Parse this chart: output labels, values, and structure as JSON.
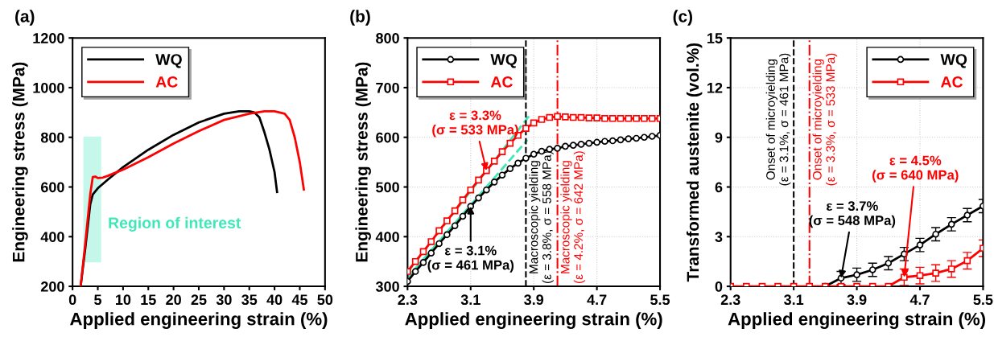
{
  "chart_data": [
    {
      "type": "line",
      "title": "(a)",
      "xlabel": "Applied engineering strain (%)",
      "ylabel": "Engineering stress (MPa)",
      "xlim": [
        0,
        50
      ],
      "xticks": [
        0,
        5,
        10,
        15,
        20,
        25,
        30,
        35,
        40,
        45,
        50
      ],
      "ylim": [
        200,
        1200
      ],
      "yticks": [
        200,
        400,
        600,
        800,
        1000,
        1200
      ],
      "grid": false,
      "legend": "top left",
      "marker": "none",
      "line_style": "solid",
      "bands": [
        {
          "axis": "x",
          "from": 2.3,
          "to": 5.5,
          "label": "Region of interest",
          "color": "#40e8b8"
        }
      ],
      "series": [
        {
          "name": "WQ",
          "color": "#000000",
          "x": [
            1.6,
            2.5,
            3.5,
            4.0,
            5.0,
            7,
            10,
            15,
            20,
            25,
            30,
            33,
            35,
            36,
            37,
            38,
            39,
            40,
            40.5
          ],
          "values": [
            200,
            350,
            530,
            570,
            595,
            630,
            680,
            750,
            810,
            860,
            895,
            905,
            905,
            900,
            880,
            820,
            750,
            660,
            580
          ]
        },
        {
          "name": "AC",
          "color": "#ff0000",
          "x": [
            1.6,
            2.5,
            3.5,
            4.0,
            4.5,
            5.0,
            6,
            7,
            10,
            15,
            20,
            25,
            30,
            35,
            38,
            40,
            42,
            43,
            44,
            45,
            45.8
          ],
          "values": [
            200,
            370,
            570,
            640,
            642,
            636,
            638,
            645,
            670,
            720,
            775,
            825,
            870,
            895,
            905,
            905,
            895,
            870,
            800,
            700,
            590
          ]
        }
      ]
    },
    {
      "type": "line",
      "title": "(b)",
      "xlabel": "Applied engineering strain (%)",
      "ylabel": "Engineering stress (MPa)",
      "xlim": [
        2.3,
        5.5
      ],
      "xticks": [
        2.3,
        3.1,
        3.9,
        4.7,
        5.5
      ],
      "ylim": [
        300,
        800
      ],
      "yticks": [
        300,
        400,
        500,
        600,
        700,
        800
      ],
      "grid": true,
      "legend": "top left",
      "line_style": "solid",
      "x": [
        2.3,
        2.4,
        2.5,
        2.6,
        2.7,
        2.8,
        2.9,
        3.0,
        3.1,
        3.2,
        3.3,
        3.4,
        3.5,
        3.6,
        3.7,
        3.8,
        3.9,
        4.0,
        4.1,
        4.2,
        4.3,
        4.4,
        4.5,
        4.6,
        4.7,
        4.8,
        4.9,
        5.0,
        5.1,
        5.2,
        5.3,
        5.4,
        5.5
      ],
      "series": [
        {
          "name": "WQ",
          "color": "#000000",
          "marker": "circle",
          "values": [
            310,
            330,
            348,
            367,
            386,
            404,
            422,
            441,
            461,
            478,
            494,
            510,
            524,
            537,
            548,
            558,
            566,
            572,
            576,
            578,
            582,
            584,
            586,
            588,
            590,
            592,
            593,
            595,
            597,
            598,
            600,
            602,
            604
          ]
        },
        {
          "name": "AC",
          "color": "#ff0000",
          "marker": "square",
          "values": [
            330,
            350,
            370,
            390,
            412,
            432,
            452,
            474,
            494,
            514,
            533,
            552,
            571,
            588,
            604,
            618,
            629,
            636,
            640,
            642,
            641,
            640,
            640,
            639,
            639,
            638,
            638,
            638,
            638,
            638,
            638,
            638,
            638
          ]
        },
        {
          "type": "line",
          "color": "#40e8b8",
          "marker": "none",
          "line_style": "dashed",
          "x": [
            2.3,
            3.86
          ],
          "values": [
            328,
            647
          ]
        },
        {
          "type": "line",
          "color": "#40e8b8",
          "marker": "none",
          "line_style": "dashed",
          "x": [
            2.3,
            3.82
          ],
          "values": [
            318,
            595
          ]
        }
      ],
      "ref_lines": [
        {
          "axis": "x",
          "value": 3.8,
          "label": "Macroscopic yielding\n(ε = 3.8%, σ = 558 MPa)",
          "color": "#000000",
          "line_style": "dashed"
        },
        {
          "axis": "x",
          "value": 4.2,
          "label": "Macroscopic yielding\n(ε = 4.2%, σ = 642 MPa)",
          "color": "#ff0000",
          "line_style": "dashdot"
        }
      ],
      "annotations": [
        {
          "text": "ε = 3.3%\n(σ = 533 MPa)",
          "x": 3.3,
          "y": 533
        },
        {
          "text": "ε = 3.1%\n(σ = 461 MPa)",
          "x": 3.1,
          "y": 461
        }
      ]
    },
    {
      "type": "line",
      "title": "(c)",
      "xlabel": "Applied engineering strain (%)",
      "ylabel": "Transformed austenite (vol.%)",
      "xlim": [
        2.3,
        5.5
      ],
      "xticks": [
        2.3,
        3.1,
        3.9,
        4.7,
        5.5
      ],
      "ylim": [
        0,
        15
      ],
      "yticks": [
        0,
        3,
        6,
        9,
        12,
        15
      ],
      "grid": true,
      "legend": "top right",
      "line_style": "solid",
      "x": [
        2.3,
        2.5,
        2.7,
        2.9,
        3.1,
        3.3,
        3.5,
        3.7,
        3.9,
        4.1,
        4.3,
        4.5,
        4.7,
        4.9,
        5.1,
        5.3,
        5.5
      ],
      "series": [
        {
          "name": "WQ",
          "color": "#000000",
          "marker": "circle",
          "values": [
            null,
            null,
            null,
            null,
            null,
            null,
            0,
            0.5,
            0.7,
            1.0,
            1.4,
            1.95,
            2.5,
            3.15,
            3.75,
            4.3,
            4.85
          ],
          "errors": [
            null,
            null,
            null,
            null,
            null,
            null,
            null,
            0.4,
            0.4,
            0.4,
            0.4,
            0.4,
            0.4,
            0.4,
            0.4,
            0.4,
            0.4
          ]
        },
        {
          "name": "AC",
          "color": "#ff0000",
          "marker": "square",
          "values": [
            0,
            0,
            0,
            0,
            0,
            0,
            0,
            0,
            0,
            0,
            0,
            0.55,
            0.65,
            0.8,
            1.05,
            1.55,
            2.3
          ],
          "errors": [
            null,
            null,
            null,
            null,
            null,
            null,
            null,
            null,
            null,
            null,
            null,
            0.5,
            0.5,
            0.5,
            0.5,
            0.5,
            0.5
          ]
        }
      ],
      "ref_lines": [
        {
          "axis": "x",
          "value": 3.1,
          "label": "Onset of microyielding\n(ε = 3.1%, σ = 461 MPa)",
          "color": "#000000",
          "line_style": "dashed"
        },
        {
          "axis": "x",
          "value": 3.3,
          "label": "Onset of microyielding\n(ε = 3.3%, σ = 533 MPa)",
          "color": "#ff0000",
          "line_style": "dashdot"
        }
      ],
      "annotations": [
        {
          "text": "ε = 3.7%\n(σ = 548 MPa)",
          "x": 3.7,
          "y": 0.5
        },
        {
          "text": "ε = 4.5%\n(σ = 640 MPa)",
          "x": 4.5,
          "y": 0.55
        }
      ]
    }
  ]
}
